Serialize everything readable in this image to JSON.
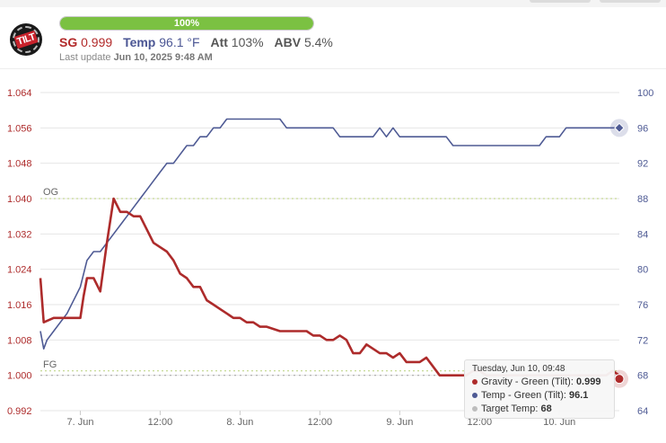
{
  "header": {
    "logo_text": "TILT",
    "progress_percent": 100,
    "progress_label": "100%",
    "sg_label": "SG",
    "sg_value": "0.999",
    "temp_label": "Temp",
    "temp_value": "96.1 °F",
    "att_label": "Att",
    "att_value": "103%",
    "abv_label": "ABV",
    "abv_value": "5.4%",
    "last_update_label": "Last update",
    "last_update_value": "Jun 10, 2025 9:48 AM"
  },
  "colors": {
    "gravity": "#ad2b2b",
    "temp": "#4e5a94",
    "progress": "#7bc142",
    "target": "#aaaaaa",
    "og_fg_line": "#b7cf7a"
  },
  "chart_data": {
    "type": "line",
    "x_tick_labels": [
      "7. Jun",
      "12:00",
      "8. Jun",
      "12:00",
      "9. Jun",
      "12:00",
      "10. Jun"
    ],
    "y_left": {
      "ticks": [
        "1.064",
        "1.056",
        "1.048",
        "1.040",
        "1.032",
        "1.024",
        "1.016",
        "1.008",
        "1.000",
        "0.992"
      ],
      "min": 0.992,
      "max": 1.064
    },
    "y_right": {
      "ticks": [
        "100",
        "96",
        "92",
        "88",
        "84",
        "80",
        "76",
        "72",
        "68",
        "64"
      ],
      "min": 64,
      "max": 100
    },
    "plot_lines": [
      {
        "label": "OG",
        "value": 1.04
      },
      {
        "label": "FG",
        "value": 1.001
      }
    ],
    "series": [
      {
        "name": "Gravity - Green (Tilt)",
        "axis": "left",
        "points": [
          [
            0,
            1.022
          ],
          [
            0.5,
            1.012
          ],
          [
            2,
            1.013
          ],
          [
            4,
            1.013
          ],
          [
            6,
            1.013
          ],
          [
            6.5,
            1.018
          ],
          [
            7,
            1.022
          ],
          [
            8,
            1.022
          ],
          [
            9,
            1.019
          ],
          [
            10,
            1.03
          ],
          [
            11,
            1.04
          ],
          [
            12,
            1.037
          ],
          [
            13,
            1.037
          ],
          [
            14,
            1.036
          ],
          [
            15,
            1.036
          ],
          [
            16,
            1.033
          ],
          [
            17,
            1.03
          ],
          [
            18,
            1.029
          ],
          [
            19,
            1.028
          ],
          [
            20,
            1.026
          ],
          [
            21,
            1.023
          ],
          [
            22,
            1.022
          ],
          [
            23,
            1.02
          ],
          [
            24,
            1.02
          ],
          [
            25,
            1.017
          ],
          [
            26,
            1.016
          ],
          [
            27,
            1.015
          ],
          [
            28,
            1.014
          ],
          [
            29,
            1.013
          ],
          [
            30,
            1.013
          ],
          [
            31,
            1.012
          ],
          [
            32,
            1.012
          ],
          [
            33,
            1.011
          ],
          [
            34,
            1.011
          ],
          [
            36,
            1.01
          ],
          [
            40,
            1.01
          ],
          [
            41,
            1.009
          ],
          [
            42,
            1.009
          ],
          [
            43,
            1.008
          ],
          [
            44,
            1.008
          ],
          [
            45,
            1.009
          ],
          [
            46,
            1.008
          ],
          [
            47,
            1.005
          ],
          [
            48,
            1.005
          ],
          [
            49,
            1.007
          ],
          [
            50,
            1.006
          ],
          [
            51,
            1.005
          ],
          [
            52,
            1.005
          ],
          [
            53,
            1.004
          ],
          [
            54,
            1.005
          ],
          [
            55,
            1.003
          ],
          [
            57,
            1.003
          ],
          [
            58,
            1.004
          ],
          [
            59,
            1.002
          ],
          [
            60,
            1.0
          ],
          [
            64,
            1.0
          ],
          [
            65,
            1.001
          ],
          [
            66,
            1.001
          ],
          [
            67,
            1.0
          ],
          [
            68,
            1.0
          ],
          [
            74,
            1.0
          ],
          [
            82,
            1.0
          ],
          [
            85,
            1.0
          ],
          [
            86,
            1.001
          ],
          [
            87,
            1.0
          ]
        ]
      },
      {
        "name": "Temp - Green (Tilt)",
        "axis": "right",
        "points": [
          [
            0,
            73
          ],
          [
            0.5,
            71
          ],
          [
            1,
            72
          ],
          [
            2,
            73
          ],
          [
            4,
            75
          ],
          [
            6,
            78
          ],
          [
            7,
            81
          ],
          [
            8,
            82
          ],
          [
            9,
            82
          ],
          [
            10,
            83
          ],
          [
            11,
            84
          ],
          [
            12,
            85
          ],
          [
            13,
            86
          ],
          [
            14,
            87
          ],
          [
            15,
            88
          ],
          [
            16,
            89
          ],
          [
            17,
            90
          ],
          [
            18,
            91
          ],
          [
            19,
            92
          ],
          [
            20,
            92
          ],
          [
            21,
            93
          ],
          [
            22,
            94
          ],
          [
            23,
            94
          ],
          [
            24,
            95
          ],
          [
            25,
            95
          ],
          [
            26,
            96
          ],
          [
            27,
            96
          ],
          [
            28,
            97
          ],
          [
            30,
            97
          ],
          [
            36,
            97
          ],
          [
            37,
            96
          ],
          [
            40,
            96
          ],
          [
            44,
            96
          ],
          [
            45,
            95
          ],
          [
            50,
            95
          ],
          [
            51,
            96
          ],
          [
            52,
            95
          ],
          [
            53,
            96
          ],
          [
            54,
            95
          ],
          [
            55,
            95
          ],
          [
            60,
            95
          ],
          [
            61,
            95
          ],
          [
            62,
            94
          ],
          [
            70,
            94
          ],
          [
            75,
            94
          ],
          [
            76,
            95
          ],
          [
            78,
            95
          ],
          [
            79,
            96
          ],
          [
            82,
            96
          ],
          [
            87,
            96
          ]
        ]
      },
      {
        "name": "Target Temp",
        "axis": "right",
        "value": 68
      }
    ]
  },
  "tooltip": {
    "header": "Tuesday, Jun 10, 09:48",
    "rows": [
      {
        "label": "Gravity - Green (Tilt): ",
        "value": "0.999",
        "color": "#ad2b2b"
      },
      {
        "label": "Temp - Green (Tilt): ",
        "value": "96.1",
        "color": "#4e5a94"
      },
      {
        "label": "Target Temp: ",
        "value": "68",
        "color": "#bdbdbd"
      }
    ]
  }
}
